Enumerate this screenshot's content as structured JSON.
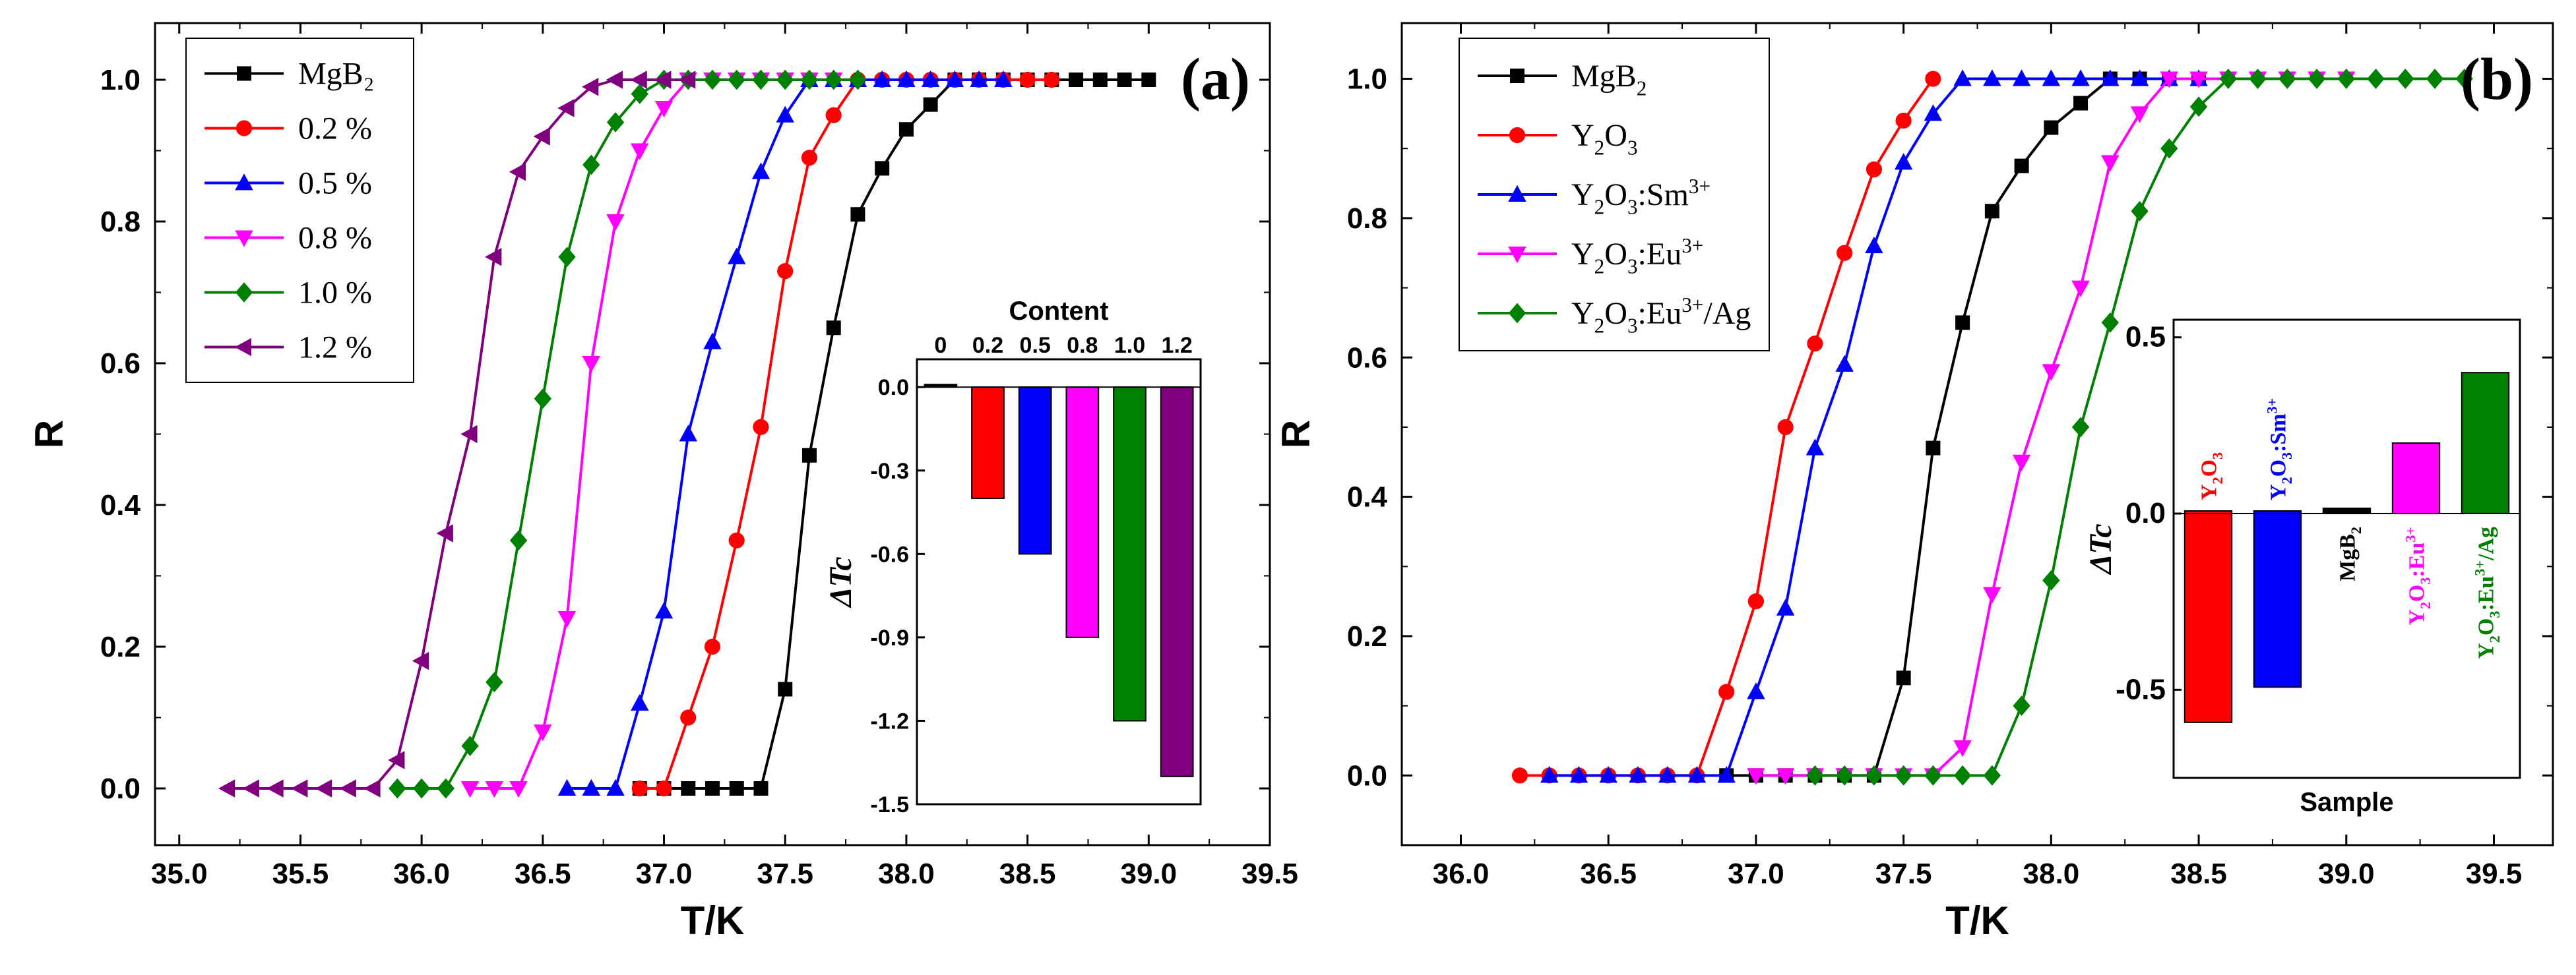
{
  "chart_data": [
    {
      "panel": "(a)",
      "type": "line",
      "xlabel": "T/K",
      "ylabel": "R",
      "xlim": [
        34.9,
        39.5
      ],
      "ylim": [
        -0.08,
        1.08
      ],
      "xticks": [
        "35.0",
        "35.5",
        "36.0",
        "36.5",
        "37.0",
        "37.5",
        "38.0",
        "38.5",
        "39.0",
        "39.5"
      ],
      "yticks": [
        "0.0",
        "0.2",
        "0.4",
        "0.6",
        "0.8",
        "1.0"
      ],
      "legend_position": "top-left",
      "series": [
        {
          "name": "MgB₂",
          "color": "#000000",
          "marker": "square",
          "x": [
            36.9,
            37.0,
            37.1,
            37.2,
            37.3,
            37.4,
            37.5,
            37.6,
            37.7,
            37.8,
            37.9,
            38.0,
            38.1,
            38.2,
            38.3,
            38.4,
            38.5,
            38.6,
            38.7,
            38.8,
            38.9,
            39.0
          ],
          "y": [
            0,
            0,
            0,
            0,
            0,
            0,
            0.14,
            0.47,
            0.65,
            0.81,
            0.875,
            0.93,
            0.965,
            1,
            1,
            1,
            1,
            1,
            1,
            1,
            1,
            1
          ]
        },
        {
          "name": "0.2 %",
          "color": "#ff0000",
          "marker": "circle",
          "x": [
            36.9,
            37.0,
            37.1,
            37.2,
            37.3,
            37.4,
            37.5,
            37.6,
            37.7,
            37.8,
            37.9,
            38.0,
            38.1,
            38.2,
            38.3,
            38.4,
            38.5,
            38.6
          ],
          "y": [
            0,
            0,
            0.1,
            0.2,
            0.35,
            0.51,
            0.73,
            0.89,
            0.95,
            1,
            1,
            1,
            1,
            1,
            1,
            1,
            1,
            1
          ]
        },
        {
          "name": "0.5 %",
          "color": "#0000ff",
          "marker": "triangle-up",
          "x": [
            36.6,
            36.7,
            36.8,
            36.9,
            37.0,
            37.1,
            37.2,
            37.3,
            37.4,
            37.5,
            37.6,
            37.7,
            37.8,
            37.9,
            38.0,
            38.1,
            38.2,
            38.3,
            38.4
          ],
          "y": [
            0,
            0,
            0,
            0.12,
            0.25,
            0.5,
            0.63,
            0.75,
            0.87,
            0.95,
            1,
            1,
            1,
            1,
            1,
            1,
            1,
            1,
            1
          ]
        },
        {
          "name": "0.8 %",
          "color": "#ff00ff",
          "marker": "triangle-down",
          "x": [
            36.2,
            36.3,
            36.4,
            36.5,
            36.6,
            36.7,
            36.8,
            36.9,
            37.0,
            37.1,
            37.2,
            37.3,
            37.4,
            37.5,
            37.6,
            37.7
          ],
          "y": [
            0,
            0,
            0,
            0.08,
            0.24,
            0.6,
            0.8,
            0.9,
            0.96,
            1,
            1,
            1,
            1,
            1,
            1,
            1
          ]
        },
        {
          "name": "1.0 %",
          "color": "#008000",
          "marker": "diamond",
          "x": [
            35.9,
            36.0,
            36.1,
            36.2,
            36.3,
            36.4,
            36.5,
            36.6,
            36.7,
            36.8,
            36.9,
            37.0,
            37.1,
            37.2,
            37.3,
            37.4,
            37.5,
            37.6,
            37.7,
            37.8
          ],
          "y": [
            0,
            0,
            0,
            0.06,
            0.15,
            0.35,
            0.55,
            0.75,
            0.88,
            0.94,
            0.98,
            1,
            1,
            1,
            1,
            1,
            1,
            1,
            1,
            1
          ]
        },
        {
          "name": "1.2 %",
          "color": "#800080",
          "marker": "triangle-left",
          "x": [
            35.2,
            35.3,
            35.4,
            35.5,
            35.6,
            35.7,
            35.8,
            35.9,
            36.0,
            36.1,
            36.2,
            36.3,
            36.4,
            36.5,
            36.6,
            36.7,
            36.8,
            36.9,
            37.0,
            37.1
          ],
          "y": [
            0,
            0,
            0,
            0,
            0,
            0,
            0,
            0.04,
            0.18,
            0.36,
            0.5,
            0.75,
            0.87,
            0.92,
            0.96,
            0.99,
            1,
            1,
            1,
            1
          ]
        }
      ],
      "inset": {
        "type": "bar",
        "title": "Content",
        "ylabel": "ΔTc",
        "ylim": [
          -1.5,
          0.1
        ],
        "yticks": [
          "0.0",
          "-0.3",
          "-0.6",
          "-0.9",
          "-1.2",
          "-1.5"
        ],
        "categories": [
          "0",
          "0.2",
          "0.5",
          "0.8",
          "1.0",
          "1.2"
        ],
        "values": [
          0,
          -0.4,
          -0.6,
          -0.9,
          -1.2,
          -1.4
        ],
        "colors": [
          "#000000",
          "#ff0000",
          "#0000ff",
          "#ff00ff",
          "#008000",
          "#800080"
        ]
      }
    },
    {
      "panel": "(b)",
      "type": "line",
      "xlabel": "T/K",
      "ylabel": "R",
      "xlim": [
        35.8,
        39.7
      ],
      "ylim": [
        -0.1,
        1.08
      ],
      "xticks": [
        "36.0",
        "36.5",
        "37.0",
        "37.5",
        "38.0",
        "38.5",
        "39.0",
        "39.5"
      ],
      "yticks": [
        "0.0",
        "0.2",
        "0.4",
        "0.6",
        "0.8",
        "1.0"
      ],
      "legend_position": "top-left",
      "series": [
        {
          "name": "MgB2",
          "color": "#000000",
          "marker": "square",
          "x": [
            36.9,
            37.0,
            37.1,
            37.2,
            37.3,
            37.4,
            37.5,
            37.6,
            37.7,
            37.8,
            37.9,
            38.0,
            38.1,
            38.2,
            38.3,
            38.4,
            38.5
          ],
          "y": [
            0,
            0,
            0,
            0,
            0,
            0,
            0.14,
            0.47,
            0.65,
            0.81,
            0.875,
            0.93,
            0.965,
            1,
            1,
            1,
            1
          ]
        },
        {
          "name": "Y2O3",
          "color": "#ff0000",
          "marker": "circle",
          "x": [
            36.2,
            36.3,
            36.4,
            36.5,
            36.6,
            36.7,
            36.8,
            36.9,
            37.0,
            37.1,
            37.2,
            37.3,
            37.4,
            37.5,
            37.6
          ],
          "y": [
            0,
            0,
            0,
            0,
            0,
            0,
            0,
            0.12,
            0.25,
            0.5,
            0.62,
            0.75,
            0.87,
            0.94,
            1
          ]
        },
        {
          "name": "Y2O3:Sm3+",
          "color": "#0000ff",
          "marker": "triangle-up",
          "x": [
            36.3,
            36.4,
            36.5,
            36.6,
            36.7,
            36.8,
            36.9,
            37.0,
            37.1,
            37.2,
            37.3,
            37.4,
            37.5,
            37.6,
            37.7,
            37.8,
            37.9,
            38.0,
            38.1,
            38.2,
            38.3,
            38.4,
            38.5
          ],
          "y": [
            0,
            0,
            0,
            0,
            0,
            0,
            0,
            0.12,
            0.24,
            0.47,
            0.59,
            0.76,
            0.88,
            0.95,
            1,
            1,
            1,
            1,
            1,
            1,
            1,
            1,
            1
          ]
        },
        {
          "name": "Y2O3:Eu3+",
          "color": "#ff00ff",
          "marker": "triangle-down",
          "x": [
            37.0,
            37.1,
            37.2,
            37.3,
            37.4,
            37.5,
            37.6,
            37.7,
            37.8,
            37.9,
            38.0,
            38.1,
            38.2,
            38.3,
            38.4,
            38.5,
            38.6,
            38.7,
            38.8,
            38.9,
            39.0
          ],
          "y": [
            0,
            0,
            0,
            0,
            0,
            0,
            0,
            0.04,
            0.26,
            0.45,
            0.58,
            0.7,
            0.88,
            0.95,
            1,
            1,
            1,
            1,
            1,
            1,
            1
          ]
        },
        {
          "name": "Y2O3:Eu3+/Ag",
          "color": "#008000",
          "marker": "diamond",
          "x": [
            37.2,
            37.3,
            37.4,
            37.5,
            37.6,
            37.7,
            37.8,
            37.9,
            38.0,
            38.1,
            38.2,
            38.3,
            38.4,
            38.5,
            38.6,
            38.7,
            38.8,
            38.9,
            39.0,
            39.1,
            39.2,
            39.3,
            39.4
          ],
          "y": [
            0,
            0,
            0,
            0,
            0,
            0,
            0,
            0.1,
            0.28,
            0.5,
            0.65,
            0.81,
            0.9,
            0.96,
            1,
            1,
            1,
            1,
            1,
            1,
            1,
            1,
            1
          ]
        }
      ],
      "inset": {
        "type": "bar",
        "xlabel": "Sample",
        "ylabel": "ΔTc",
        "ylim": [
          -0.75,
          0.55
        ],
        "yticks": [
          "0.5",
          "0.0",
          "-0.5"
        ],
        "categories": [
          "Y2O3",
          "Y2O3:Sm3+",
          "MgB2",
          "Y2O3:Eu3+",
          "Y2O3:Eu3+/Ag"
        ],
        "values": [
          -0.6,
          -0.5,
          0,
          0.2,
          0.4
        ],
        "colors": [
          "#ff0000",
          "#0000ff",
          "#000000",
          "#ff00ff",
          "#008000"
        ]
      }
    }
  ]
}
